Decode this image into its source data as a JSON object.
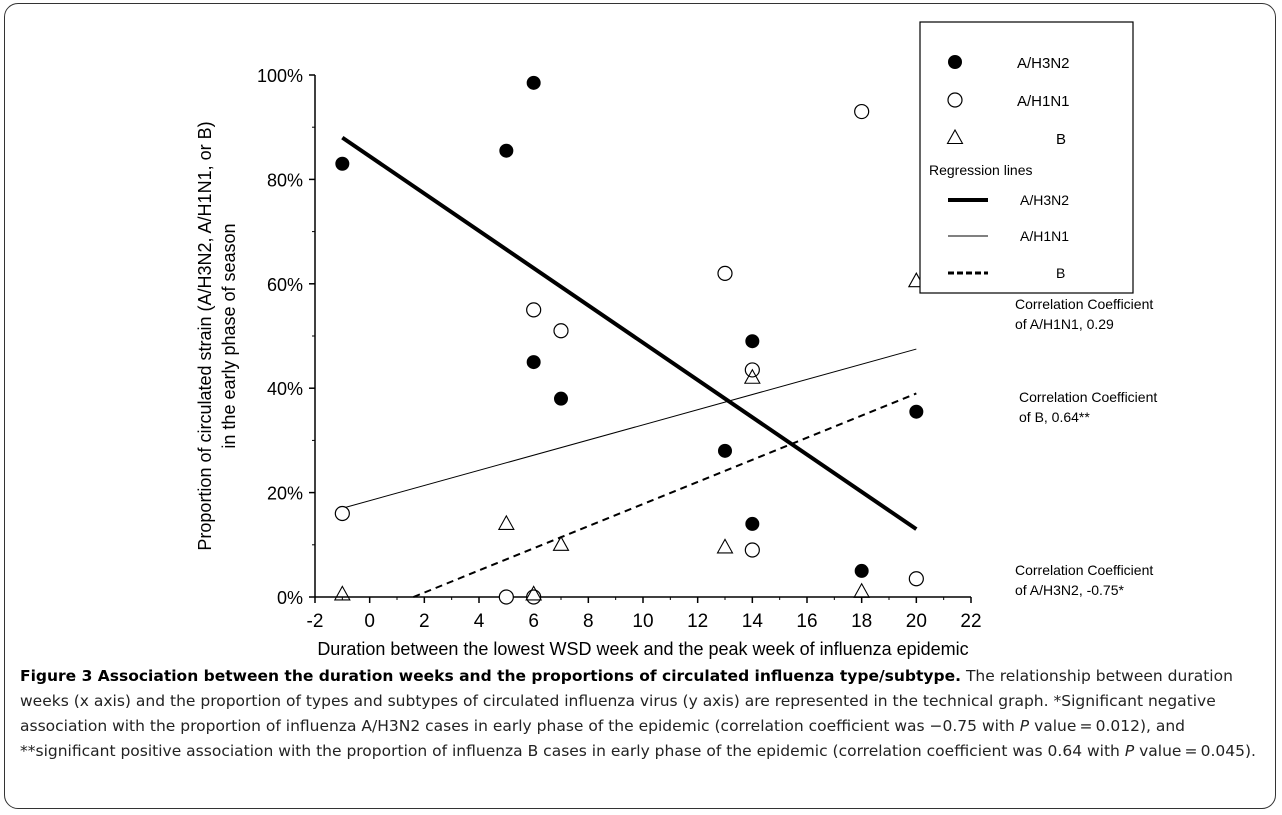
{
  "chart_data": {
    "type": "scatter",
    "xlabel": "Duration between the lowest WSD week and the peak week of influenza epidemic",
    "ylabel_line1": "Proportion of circulated strain (A/H3N2, A/H1N1, or B)",
    "ylabel_line2": "in the early phase of season",
    "xlim": [
      -2,
      22
    ],
    "ylim": [
      0,
      100
    ],
    "x_ticks": [
      -2,
      0,
      2,
      4,
      6,
      8,
      10,
      12,
      14,
      16,
      18,
      20,
      22
    ],
    "y_ticks": [
      0,
      20,
      40,
      60,
      80,
      100
    ],
    "y_tick_labels": [
      "0%",
      "20%",
      "40%",
      "60%",
      "80%",
      "100%"
    ],
    "series": [
      {
        "name": "A/H3N2",
        "marker": "filled-circle",
        "points": [
          [
            -1,
            83
          ],
          [
            5,
            85.5
          ],
          [
            6,
            98.5
          ],
          [
            6,
            45
          ],
          [
            7,
            38
          ],
          [
            13,
            28
          ],
          [
            14,
            49
          ],
          [
            14,
            14
          ],
          [
            18,
            5
          ],
          [
            20,
            35.5
          ]
        ]
      },
      {
        "name": "A/H1N1",
        "marker": "open-circle",
        "points": [
          [
            -1,
            16
          ],
          [
            5,
            0
          ],
          [
            6,
            0
          ],
          [
            6,
            55
          ],
          [
            7,
            51
          ],
          [
            13,
            62
          ],
          [
            14,
            43.5
          ],
          [
            14,
            9
          ],
          [
            18,
            93
          ],
          [
            20,
            3.5
          ]
        ]
      },
      {
        "name": "B",
        "marker": "open-triangle",
        "points": [
          [
            -1,
            0.5
          ],
          [
            5,
            14
          ],
          [
            6,
            0.5
          ],
          [
            7,
            10
          ],
          [
            13,
            9.5
          ],
          [
            14,
            42
          ],
          [
            18,
            1
          ],
          [
            20,
            60.5
          ]
        ]
      }
    ],
    "regression_lines": [
      {
        "name": "A/H3N2",
        "style": "thick-solid",
        "x": [
          -1,
          20
        ],
        "y": [
          88,
          13
        ]
      },
      {
        "name": "A/H1N1",
        "style": "thin-solid",
        "x": [
          -1,
          20
        ],
        "y": [
          17,
          47.5
        ]
      },
      {
        "name": "B",
        "style": "dashed",
        "x": [
          1.6,
          20
        ],
        "y": [
          0,
          39
        ]
      }
    ],
    "annotations": [
      {
        "line1": "Correlation Coefficient",
        "line2": "of A/H1N1, 0.29"
      },
      {
        "line1": "Correlation Coefficient",
        "line2": "of B, 0.64**"
      },
      {
        "line1": "Correlation Coefficient",
        "line2": "of A/H3N2, -0.75*"
      }
    ],
    "legend": {
      "placement": "top-right",
      "title": "Regression lines",
      "marker_entries": [
        "A/H3N2",
        "A/H1N1",
        "B"
      ],
      "line_entries": [
        "A/H3N2",
        "A/H1N1",
        "B"
      ]
    }
  },
  "caption": {
    "title": "Figure 3 Association between the duration weeks and the proportions of circulated influenza type/subtype.",
    "text_1": " The relationship between duration weeks (x axis) and the proportion of types and subtypes of circulated influenza virus (y axis) are represented in the technical graph. *Significant negative association with the proportion of influenza A/H3N2 cases in early phase of the epidemic (correlation coefficient was −0.75 with ",
    "p1": "P",
    "text_2": " value = 0.012), and **significant positive association with the proportion of influenza B cases in early phase of the epidemic (correlation coefficient was 0.64 with ",
    "p2": "P",
    "text_3": " value = 0.045)."
  }
}
